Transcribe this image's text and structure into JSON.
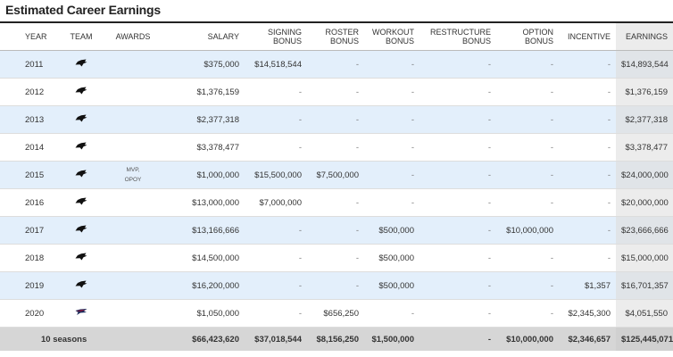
{
  "title": "Estimated Career Earnings",
  "columns": {
    "year": "YEAR",
    "team": "TEAM",
    "awards": "AWARDS",
    "salary": "SALARY",
    "signing": [
      "SIGNING",
      "BONUS"
    ],
    "roster": [
      "ROSTER",
      "BONUS"
    ],
    "workout": [
      "WORKOUT",
      "BONUS"
    ],
    "restructure": [
      "RESTRUCTURE",
      "BONUS"
    ],
    "option": [
      "OPTION",
      "BONUS"
    ],
    "incentive": "INCENTIVE",
    "earnings": "EARNINGS"
  },
  "rows": [
    {
      "year": "2011",
      "team": "panthers-logo",
      "awards": [
        "",
        ""
      ],
      "salary": "$375,000",
      "signing": "$14,518,544",
      "roster": "-",
      "workout": "-",
      "restructure": "-",
      "option": "-",
      "incentive": "-",
      "earnings": "$14,893,544"
    },
    {
      "year": "2012",
      "team": "panthers-logo",
      "awards": [
        "",
        ""
      ],
      "salary": "$1,376,159",
      "signing": "-",
      "roster": "-",
      "workout": "-",
      "restructure": "-",
      "option": "-",
      "incentive": "-",
      "earnings": "$1,376,159"
    },
    {
      "year": "2013",
      "team": "panthers-logo",
      "awards": [
        "",
        ""
      ],
      "salary": "$2,377,318",
      "signing": "-",
      "roster": "-",
      "workout": "-",
      "restructure": "-",
      "option": "-",
      "incentive": "-",
      "earnings": "$2,377,318"
    },
    {
      "year": "2014",
      "team": "panthers-logo",
      "awards": [
        "",
        ""
      ],
      "salary": "$3,378,477",
      "signing": "-",
      "roster": "-",
      "workout": "-",
      "restructure": "-",
      "option": "-",
      "incentive": "-",
      "earnings": "$3,378,477"
    },
    {
      "year": "2015",
      "team": "panthers-logo",
      "awards": [
        "MVP,",
        "OPOY"
      ],
      "salary": "$1,000,000",
      "signing": "$15,500,000",
      "roster": "$7,500,000",
      "workout": "-",
      "restructure": "-",
      "option": "-",
      "incentive": "-",
      "earnings": "$24,000,000"
    },
    {
      "year": "2016",
      "team": "panthers-logo",
      "awards": [
        "",
        ""
      ],
      "salary": "$13,000,000",
      "signing": "$7,000,000",
      "roster": "-",
      "workout": "-",
      "restructure": "-",
      "option": "-",
      "incentive": "-",
      "earnings": "$20,000,000"
    },
    {
      "year": "2017",
      "team": "panthers-logo",
      "awards": [
        "",
        ""
      ],
      "salary": "$13,166,666",
      "signing": "-",
      "roster": "-",
      "workout": "$500,000",
      "restructure": "-",
      "option": "$10,000,000",
      "incentive": "-",
      "earnings": "$23,666,666"
    },
    {
      "year": "2018",
      "team": "panthers-logo",
      "awards": [
        "",
        ""
      ],
      "salary": "$14,500,000",
      "signing": "-",
      "roster": "-",
      "workout": "$500,000",
      "restructure": "-",
      "option": "-",
      "incentive": "-",
      "earnings": "$15,000,000"
    },
    {
      "year": "2019",
      "team": "panthers-logo",
      "awards": [
        "",
        ""
      ],
      "salary": "$16,200,000",
      "signing": "-",
      "roster": "-",
      "workout": "$500,000",
      "restructure": "-",
      "option": "-",
      "incentive": "$1,357",
      "earnings": "$16,701,357"
    },
    {
      "year": "2020",
      "team": "patriots-logo",
      "awards": [
        "",
        ""
      ],
      "salary": "$1,050,000",
      "signing": "-",
      "roster": "$656,250",
      "workout": "-",
      "restructure": "-",
      "option": "-",
      "incentive": "$2,345,300",
      "earnings": "$4,051,550"
    }
  ],
  "totals": {
    "label": "10 seasons",
    "salary": "$66,423,620",
    "signing": "$37,018,544",
    "roster": "$8,156,250",
    "workout": "$1,500,000",
    "restructure": "-",
    "option": "$10,000,000",
    "incentive": "$2,346,657",
    "earnings": "$125,445,071"
  },
  "colors": {
    "alt_row": "#e3effb",
    "earnings_col": "#ececec",
    "total_row": "#d6d6d6",
    "panthers_logo": "#111111",
    "patriots_red": "#c8102e",
    "patriots_navy": "#1a2a5a"
  }
}
